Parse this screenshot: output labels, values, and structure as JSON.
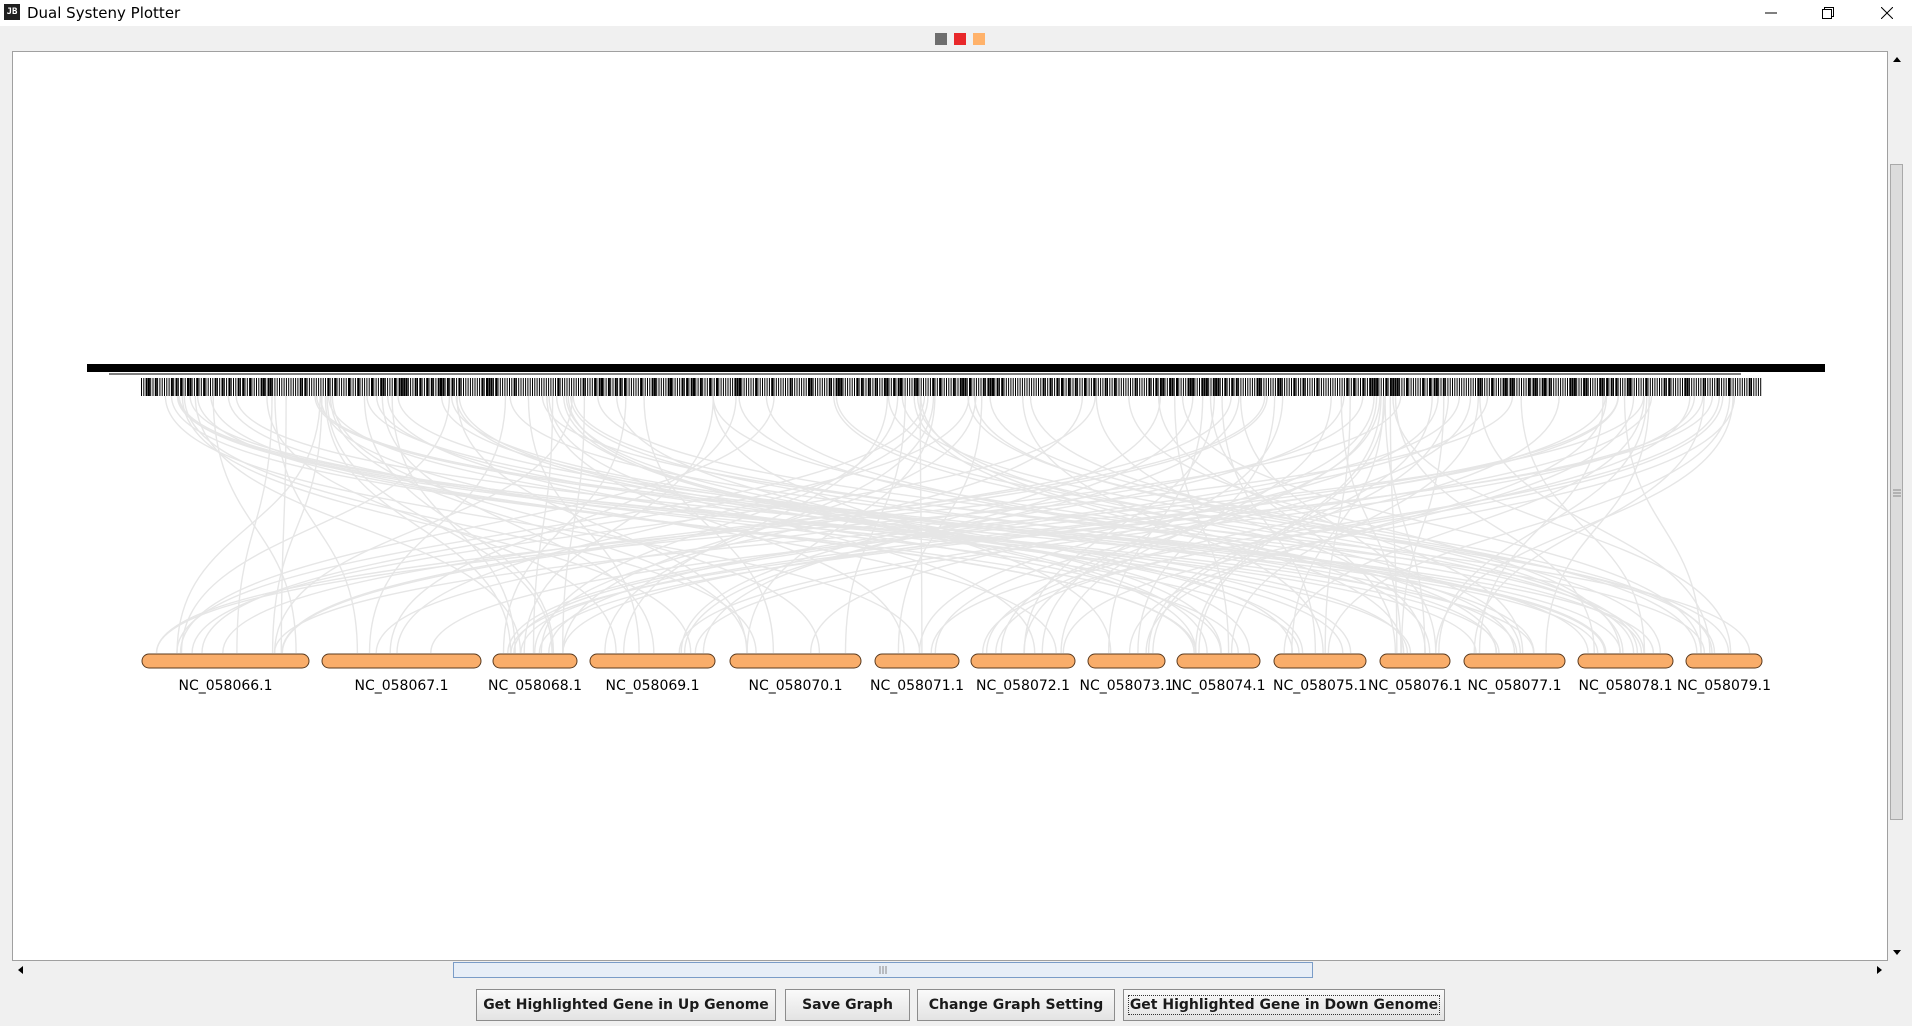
{
  "window": {
    "title": "Dual Systeny Plotter",
    "icon_text": "JB",
    "controls": [
      "minimize-icon",
      "restore-icon",
      "close-icon"
    ]
  },
  "legend_swatches": [
    {
      "name": "gray-swatch",
      "color": "#6e6e6e"
    },
    {
      "name": "red-swatch",
      "color": "#e8282a"
    },
    {
      "name": "orange-swatch",
      "color": "#ffb26a"
    }
  ],
  "colors": {
    "chromosome_fill": "#f9ad6a",
    "chromosome_stroke": "#5a3a1e",
    "link_color": "#e6e6e6",
    "gene_tick_color": "#000000"
  },
  "up_genome": {
    "description": "dense gene tick tracks"
  },
  "down_genome": {
    "chromosomes": [
      "NC_058066.1",
      "NC_058067.1",
      "NC_058068.1",
      "NC_058069.1",
      "NC_058070.1",
      "NC_058071.1",
      "NC_058072.1",
      "NC_058073.1",
      "NC_058074.1",
      "NC_058075.1",
      "NC_058076.1",
      "NC_058077.1",
      "NC_058078.1",
      "NC_058079.1"
    ]
  },
  "buttons": {
    "up_gene": "Get Highlighted Gene in Up Genome",
    "save": "Save Graph",
    "settings": "Change Graph Setting",
    "down_gene": "Get Highlighted Gene in Down Genome"
  }
}
